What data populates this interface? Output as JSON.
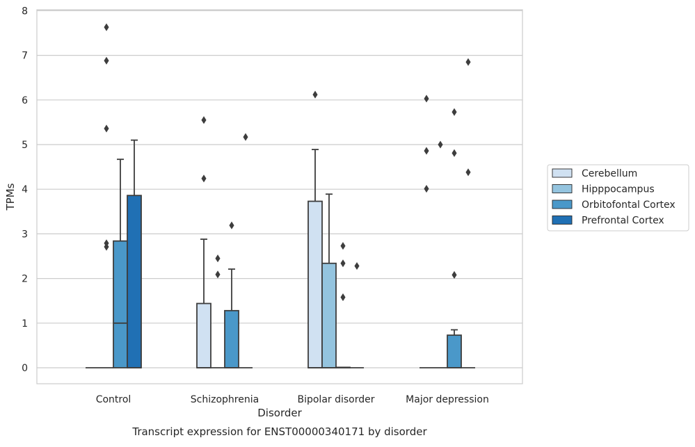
{
  "chart_data": {
    "type": "boxplot",
    "caption": "Transcript expression for ENST00000340171 by disorder",
    "xlabel": "Disorder",
    "ylabel": "TPMs",
    "ylim": [
      -0.35,
      8
    ],
    "y_ticks": [
      0,
      1,
      2,
      3,
      4,
      5,
      6,
      7,
      8
    ],
    "grid": true,
    "legend_position": "right",
    "categories": [
      "Control",
      "Schizophrenia",
      "Bipolar disorder",
      "Major depression"
    ],
    "series": [
      {
        "name": "Cerebellum",
        "color": "#d0e1f2",
        "boxes": [
          {
            "category": "Control",
            "q1": 0,
            "median": 0,
            "q3": 0,
            "whisker_low": 0,
            "whisker_high": 0,
            "outliers": []
          },
          {
            "category": "Schizophrenia",
            "q1": 0,
            "median": 0,
            "q3": 1.44,
            "whisker_low": 0,
            "whisker_high": 2.88,
            "outliers": [
              4.24,
              5.55
            ]
          },
          {
            "category": "Bipolar disorder",
            "q1": 0,
            "median": 0,
            "q3": 3.73,
            "whisker_low": 0,
            "whisker_high": 4.89,
            "outliers": [
              6.12
            ]
          },
          {
            "category": "Major depression",
            "q1": 0,
            "median": 0,
            "q3": 0,
            "whisker_low": 0,
            "whisker_high": 0,
            "outliers": [
              4.01,
              4.86,
              6.03
            ]
          }
        ]
      },
      {
        "name": "Hipppocampus",
        "color": "#94c4df",
        "boxes": [
          {
            "category": "Control",
            "q1": 0,
            "median": 0,
            "q3": 0,
            "whisker_low": 0,
            "whisker_high": 0,
            "outliers": [
              2.71,
              2.79,
              5.36,
              6.88,
              7.63
            ]
          },
          {
            "category": "Schizophrenia",
            "q1": 0,
            "median": 0,
            "q3": 0,
            "whisker_low": 0,
            "whisker_high": 0,
            "outliers": [
              2.09,
              2.45
            ]
          },
          {
            "category": "Bipolar disorder",
            "q1": 0,
            "median": 0,
            "q3": 2.34,
            "whisker_low": 0,
            "whisker_high": 3.89,
            "outliers": []
          },
          {
            "category": "Major depression",
            "q1": 0,
            "median": 0,
            "q3": 0,
            "whisker_low": 0,
            "whisker_high": 0,
            "outliers": [
              5.0
            ]
          }
        ]
      },
      {
        "name": "Orbitofontal Cortex",
        "color": "#4a98c9",
        "boxes": [
          {
            "category": "Control",
            "q1": 0,
            "median": 1.0,
            "q3": 2.84,
            "whisker_low": 0,
            "whisker_high": 4.67,
            "outliers": []
          },
          {
            "category": "Schizophrenia",
            "q1": 0,
            "median": 0,
            "q3": 1.28,
            "whisker_low": 0,
            "whisker_high": 2.21,
            "outliers": [
              3.19
            ]
          },
          {
            "category": "Bipolar disorder",
            "q1": 0,
            "median": 0,
            "q3": 0.01,
            "whisker_low": 0,
            "whisker_high": 0.01,
            "outliers": [
              1.58,
              2.34,
              2.73
            ]
          },
          {
            "category": "Major depression",
            "q1": 0,
            "median": 0,
            "q3": 0.73,
            "whisker_low": 0,
            "whisker_high": 0.85,
            "outliers": [
              2.08,
              4.81,
              5.73
            ]
          }
        ]
      },
      {
        "name": "Prefrontal Cortex",
        "color": "#2070b4",
        "boxes": [
          {
            "category": "Control",
            "q1": 0,
            "median": 0,
            "q3": 3.86,
            "whisker_low": 0,
            "whisker_high": 5.1,
            "outliers": []
          },
          {
            "category": "Schizophrenia",
            "q1": 0,
            "median": 0,
            "q3": 0,
            "whisker_low": 0,
            "whisker_high": 0,
            "outliers": [
              5.17
            ]
          },
          {
            "category": "Bipolar disorder",
            "q1": 0,
            "median": 0,
            "q3": 0,
            "whisker_low": 0,
            "whisker_high": 0,
            "outliers": [
              2.28
            ]
          },
          {
            "category": "Major depression",
            "q1": 0,
            "median": 0,
            "q3": 0,
            "whisker_low": 0,
            "whisker_high": 0,
            "outliers": [
              4.38,
              6.85
            ]
          }
        ]
      }
    ]
  }
}
